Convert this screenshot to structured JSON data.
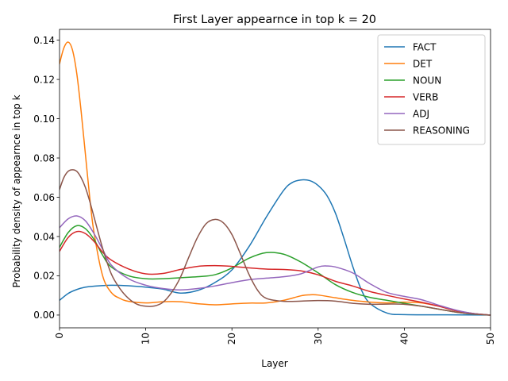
{
  "chart_data": {
    "type": "line",
    "title": "First Layer appearnce in top k = 20",
    "xlabel": "Layer",
    "ylabel": "Probability density of appearnce in top k",
    "xlim": [
      0,
      50
    ],
    "ylim": [
      -0.0065,
      0.1455
    ],
    "xticks": [
      0,
      10,
      20,
      30,
      40,
      50
    ],
    "xtick_labels": [
      "0",
      "10",
      "20",
      "30",
      "40",
      "50"
    ],
    "xtick_rotation": "vertical",
    "yticks": [
      0.0,
      0.02,
      0.04,
      0.06,
      0.08,
      0.1,
      0.12,
      0.14
    ],
    "ytick_labels": [
      "0.00",
      "0.02",
      "0.04",
      "0.06",
      "0.08",
      "0.10",
      "0.12",
      "0.14"
    ],
    "grid": false,
    "legend_position": "top-right",
    "series": [
      {
        "name": "FACT",
        "color": "#1f77b4",
        "x": [
          0,
          1,
          2,
          3,
          4,
          6,
          8,
          10,
          12,
          14,
          16,
          18,
          20,
          22,
          24,
          26,
          27,
          28,
          29,
          30,
          31,
          32,
          33,
          34,
          35,
          36,
          38,
          40,
          45,
          50
        ],
        "y": [
          0.0075,
          0.011,
          0.013,
          0.0142,
          0.0147,
          0.0152,
          0.0149,
          0.0142,
          0.0132,
          0.0112,
          0.0125,
          0.0165,
          0.023,
          0.035,
          0.05,
          0.0635,
          0.0675,
          0.0688,
          0.0685,
          0.066,
          0.061,
          0.052,
          0.039,
          0.025,
          0.013,
          0.006,
          0.001,
          0.0002,
          0.0001,
          0.0
        ]
      },
      {
        "name": "DET",
        "color": "#ff7f0e",
        "x": [
          0,
          0.5,
          1,
          1.5,
          2,
          2.5,
          3,
          3.5,
          4,
          5,
          6,
          7,
          8,
          10,
          12,
          14,
          16,
          18,
          20,
          22,
          24,
          26,
          28,
          29,
          30,
          32,
          34,
          36,
          38,
          40,
          42,
          44,
          46,
          48,
          50
        ],
        "y": [
          0.128,
          0.136,
          0.139,
          0.135,
          0.123,
          0.104,
          0.082,
          0.06,
          0.042,
          0.02,
          0.0115,
          0.0085,
          0.007,
          0.0062,
          0.0068,
          0.0068,
          0.0058,
          0.0052,
          0.0057,
          0.0061,
          0.0062,
          0.0075,
          0.0098,
          0.0103,
          0.0102,
          0.0088,
          0.0075,
          0.0066,
          0.0062,
          0.0066,
          0.0062,
          0.0045,
          0.0022,
          0.0008,
          0.0
        ]
      },
      {
        "name": "NOUN",
        "color": "#2ca02c",
        "x": [
          0,
          1,
          2,
          3,
          4,
          5,
          6,
          8,
          10,
          12,
          14,
          16,
          18,
          20,
          22,
          24,
          26,
          28,
          30,
          32,
          34,
          36,
          38,
          40,
          42,
          44,
          46,
          48,
          50
        ],
        "y": [
          0.0345,
          0.042,
          0.0455,
          0.044,
          0.0385,
          0.0305,
          0.0245,
          0.02,
          0.0185,
          0.0185,
          0.019,
          0.0195,
          0.0205,
          0.024,
          0.029,
          0.0318,
          0.031,
          0.027,
          0.0215,
          0.0155,
          0.0115,
          0.009,
          0.0075,
          0.006,
          0.0045,
          0.003,
          0.0015,
          0.0005,
          0.0
        ]
      },
      {
        "name": "VERB",
        "color": "#d62728",
        "x": [
          0,
          1,
          2,
          3,
          4,
          5,
          6,
          8,
          10,
          12,
          14,
          16,
          18,
          20,
          22,
          24,
          26,
          28,
          30,
          32,
          34,
          36,
          38,
          40,
          42,
          44,
          46,
          48,
          50
        ],
        "y": [
          0.0325,
          0.0395,
          0.0425,
          0.0415,
          0.0375,
          0.032,
          0.028,
          0.0235,
          0.021,
          0.0212,
          0.0232,
          0.0248,
          0.0252,
          0.0248,
          0.024,
          0.0234,
          0.0232,
          0.0225,
          0.0205,
          0.0172,
          0.0148,
          0.012,
          0.01,
          0.0082,
          0.0065,
          0.0045,
          0.0022,
          0.0008,
          0.0
        ]
      },
      {
        "name": "ADJ",
        "color": "#9467bd",
        "x": [
          0,
          1,
          2,
          3,
          4,
          5,
          6,
          8,
          10,
          12,
          14,
          16,
          18,
          20,
          22,
          24,
          26,
          28,
          30,
          31,
          32,
          34,
          36,
          38,
          40,
          42,
          44,
          46,
          48,
          50
        ],
        "y": [
          0.0445,
          0.049,
          0.0505,
          0.048,
          0.0415,
          0.0335,
          0.0255,
          0.0185,
          0.0152,
          0.0135,
          0.0128,
          0.0135,
          0.0148,
          0.0165,
          0.018,
          0.0188,
          0.0195,
          0.021,
          0.0245,
          0.025,
          0.0245,
          0.0215,
          0.016,
          0.0115,
          0.0095,
          0.0078,
          0.005,
          0.0025,
          0.0008,
          0.0
        ]
      },
      {
        "name": "REASONING",
        "color": "#8c564b",
        "x": [
          0,
          0.5,
          1,
          1.5,
          2,
          2.5,
          3,
          3.5,
          4,
          5,
          6,
          7,
          8,
          9,
          10,
          11,
          12,
          13,
          14,
          15,
          16,
          17,
          18,
          19,
          20,
          21,
          22,
          23,
          24,
          26,
          28,
          30,
          32,
          34,
          36,
          38,
          40,
          42,
          44,
          46,
          48,
          50
        ],
        "y": [
          0.064,
          0.07,
          0.0732,
          0.074,
          0.0732,
          0.07,
          0.065,
          0.058,
          0.05,
          0.034,
          0.021,
          0.0135,
          0.0085,
          0.0055,
          0.0045,
          0.0046,
          0.0065,
          0.0115,
          0.019,
          0.0295,
          0.0395,
          0.0465,
          0.0487,
          0.047,
          0.041,
          0.031,
          0.0205,
          0.0125,
          0.0085,
          0.007,
          0.0071,
          0.0074,
          0.0071,
          0.006,
          0.0055,
          0.0056,
          0.0055,
          0.0045,
          0.003,
          0.0015,
          0.0005,
          0.0
        ]
      }
    ]
  }
}
